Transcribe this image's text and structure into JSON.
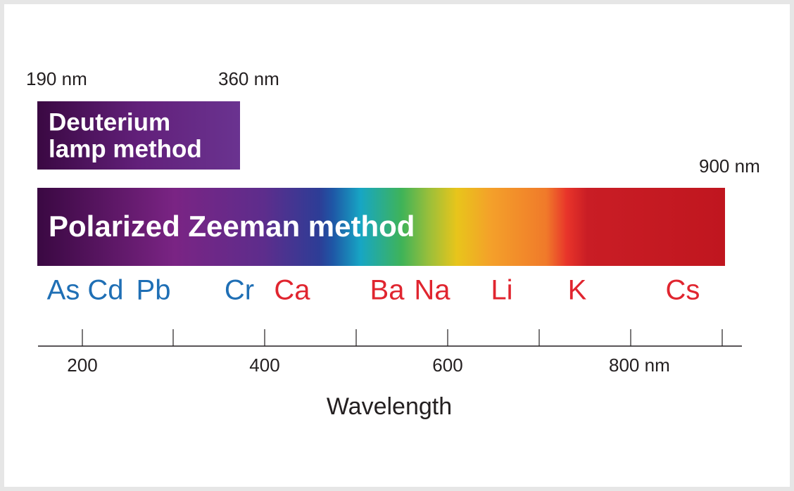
{
  "range_labels": [
    "190 nm",
    "360 nm",
    "900 nm"
  ],
  "deuterium": {
    "lines": [
      "Deuterium",
      "lamp method"
    ]
  },
  "zeeman": {
    "label": "Polarized Zeeman method"
  },
  "elements": [
    {
      "symbol": "As",
      "color": "#1f6fb5"
    },
    {
      "symbol": "Cd",
      "color": "#1f6fb5"
    },
    {
      "symbol": "Pb",
      "color": "#1f6fb5"
    },
    {
      "symbol": "Cr",
      "color": "#1f6fb5"
    },
    {
      "symbol": "Ca",
      "color": "#e0252f"
    },
    {
      "symbol": "Ba",
      "color": "#e0252f"
    },
    {
      "symbol": "Na",
      "color": "#e0252f"
    },
    {
      "symbol": "Li",
      "color": "#e0252f"
    },
    {
      "symbol": "K",
      "color": "#e0252f"
    },
    {
      "symbol": "Cs",
      "color": "#e0252f"
    }
  ],
  "axis": {
    "tick_labels": [
      "200",
      "400",
      "600",
      "800 nm"
    ],
    "title": "Wavelength"
  }
}
